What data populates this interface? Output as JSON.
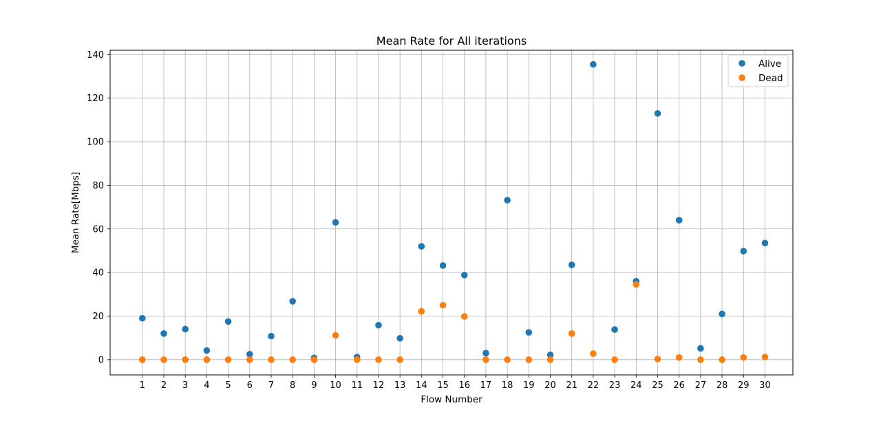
{
  "chart_data": {
    "type": "scatter",
    "title": "Mean Rate for All iterations",
    "xlabel": "Flow Number",
    "ylabel": "Mean Rate[Mbps]",
    "xlim": [
      -0.5,
      31.3
    ],
    "ylim": [
      -7,
      142
    ],
    "x": [
      1,
      2,
      3,
      4,
      5,
      6,
      7,
      8,
      9,
      10,
      11,
      12,
      13,
      14,
      15,
      16,
      17,
      18,
      19,
      20,
      21,
      22,
      23,
      24,
      25,
      26,
      27,
      28,
      29,
      30
    ],
    "x_tick_labels": [
      "1",
      "2",
      "3",
      "4",
      "5",
      "6",
      "7",
      "8",
      "9",
      "10",
      "11",
      "12",
      "13",
      "14",
      "15",
      "16",
      "17",
      "18",
      "19",
      "20",
      "21",
      "22",
      "23",
      "24",
      "25",
      "26",
      "27",
      "28",
      "29",
      "30"
    ],
    "y_ticks": [
      0,
      20,
      40,
      60,
      80,
      100,
      120,
      140
    ],
    "y_tick_labels": [
      "0",
      "20",
      "40",
      "60",
      "80",
      "100",
      "120",
      "140"
    ],
    "grid": true,
    "legend_position": "top-right",
    "series": [
      {
        "name": "Alive",
        "color": "#1f77b4",
        "values": [
          19.0,
          12.0,
          14.0,
          4.2,
          17.5,
          2.5,
          10.8,
          26.8,
          0.8,
          63.0,
          1.2,
          15.8,
          9.8,
          52.0,
          43.2,
          38.8,
          3.0,
          73.2,
          12.5,
          2.2,
          43.5,
          135.5,
          13.8,
          36.0,
          113.0,
          64.0,
          5.2,
          21.0,
          49.8,
          53.5
        ]
      },
      {
        "name": "Dead",
        "color": "#ff7f0e",
        "values": [
          0.0,
          0.0,
          0.0,
          0.0,
          0.0,
          0.0,
          0.0,
          0.0,
          0.0,
          11.2,
          0.0,
          0.0,
          0.0,
          22.2,
          25.0,
          19.8,
          0.0,
          0.0,
          0.0,
          0.0,
          12.0,
          2.8,
          0.0,
          34.5,
          0.3,
          1.0,
          0.0,
          0.0,
          1.0,
          1.2
        ]
      }
    ]
  }
}
